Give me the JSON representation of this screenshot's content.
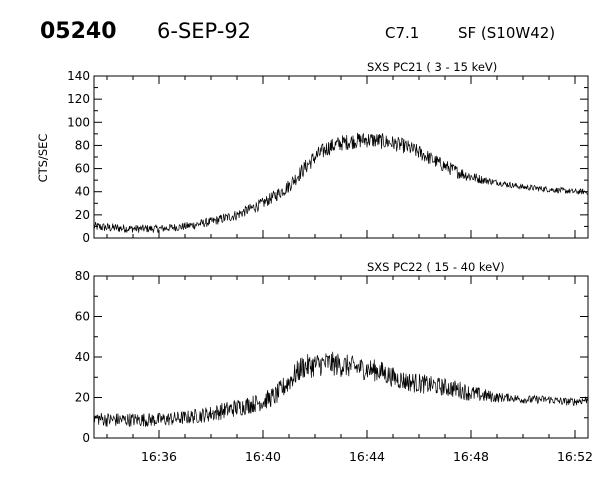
{
  "header": {
    "event_id": "05240",
    "date": "6-SEP-92",
    "goes_class": "C7.1",
    "location": "SF (S10W42)"
  },
  "chart_data": [
    {
      "type": "line",
      "title": "SXS PC21  (  3 - 15 keV)",
      "xlabel": "",
      "ylabel": "CTS/SEC",
      "xlim": [
        "16:33:30",
        "16:52:30"
      ],
      "ylim": [
        0,
        140
      ],
      "x_ticks": [
        "16:36",
        "16:40",
        "16:44",
        "16:48",
        "16:52"
      ],
      "y_ticks": [
        0,
        20,
        40,
        60,
        80,
        100,
        120,
        140
      ],
      "grid": false,
      "series": [
        {
          "x": [
            "16:33:30",
            "16:34:00",
            "16:35:00",
            "16:36:00",
            "16:37:00",
            "16:38:00",
            "16:39:00",
            "16:40:00",
            "16:40:30",
            "16:41:00",
            "16:41:30",
            "16:42:00",
            "16:42:30",
            "16:43:00",
            "16:43:30",
            "16:44:00",
            "16:44:30",
            "16:45:00",
            "16:45:30",
            "16:46:00",
            "16:46:30",
            "16:47:00",
            "16:47:30",
            "16:48:00",
            "16:48:30",
            "16:49:00",
            "16:49:30",
            "16:50:00",
            "16:50:30",
            "16:51:00",
            "16:51:30",
            "16:52:00",
            "16:52:30"
          ],
          "values": [
            10,
            9,
            8,
            8,
            10,
            14,
            20,
            30,
            37,
            45,
            58,
            70,
            78,
            82,
            84,
            85,
            84,
            82,
            79,
            74,
            68,
            62,
            57,
            53,
            50,
            48,
            46,
            44,
            43,
            42,
            41,
            40,
            40
          ],
          "noise": [
            8,
            8,
            7,
            7,
            7,
            8,
            9,
            10,
            11,
            12,
            13,
            14,
            14,
            14,
            14,
            14,
            14,
            13,
            13,
            13,
            12,
            12,
            11,
            10,
            7,
            5,
            5,
            5,
            5,
            5,
            5,
            5,
            5
          ]
        }
      ]
    },
    {
      "type": "line",
      "title": "SXS PC22  ( 15 - 40 keV)",
      "xlabel": "",
      "ylabel": "",
      "xlim": [
        "16:33:30",
        "16:52:30"
      ],
      "ylim": [
        0,
        80
      ],
      "x_ticks": [
        "16:36",
        "16:40",
        "16:44",
        "16:48",
        "16:52"
      ],
      "y_ticks": [
        0,
        20,
        40,
        60,
        80
      ],
      "grid": false,
      "series": [
        {
          "x": [
            "16:33:30",
            "16:34:00",
            "16:35:00",
            "16:36:00",
            "16:37:00",
            "16:38:00",
            "16:39:00",
            "16:40:00",
            "16:40:30",
            "16:41:00",
            "16:41:30",
            "16:42:00",
            "16:42:30",
            "16:43:00",
            "16:43:30",
            "16:44:00",
            "16:44:30",
            "16:45:00",
            "16:45:30",
            "16:46:00",
            "16:46:30",
            "16:47:00",
            "16:47:30",
            "16:48:00",
            "16:48:30",
            "16:49:00",
            "16:49:30",
            "16:50:00",
            "16:50:30",
            "16:51:00",
            "16:51:30",
            "16:52:00",
            "16:52:30"
          ],
          "values": [
            10,
            9,
            9,
            9,
            10,
            12,
            15,
            18,
            21,
            28,
            35,
            36,
            37,
            36,
            35,
            34,
            33,
            30,
            28,
            27,
            26,
            25,
            24,
            22,
            21,
            20,
            20,
            19,
            19,
            19,
            18,
            18,
            19
          ],
          "noise": [
            7,
            7,
            7,
            7,
            7,
            8,
            9,
            9,
            10,
            11,
            12,
            12,
            12,
            12,
            11,
            11,
            11,
            10,
            10,
            10,
            9,
            9,
            9,
            8,
            7,
            5,
            4,
            4,
            4,
            4,
            4,
            4,
            4
          ]
        }
      ]
    }
  ]
}
